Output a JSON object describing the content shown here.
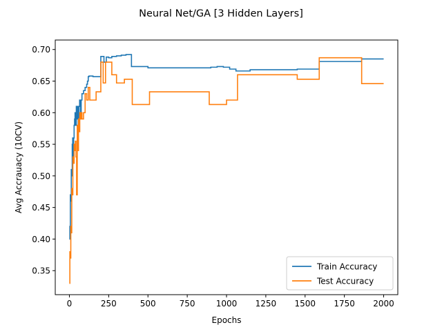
{
  "chart_data": {
    "type": "line",
    "title": "Neural Net/GA [3 Hidden Layers]",
    "xlabel": "Epochs",
    "ylabel": "Avg Accrauacy (10CV)",
    "xlim": [
      -90,
      2090
    ],
    "ylim": [
      0.312,
      0.715
    ],
    "xticks": [
      0,
      250,
      500,
      750,
      1000,
      1250,
      1500,
      1750,
      2000
    ],
    "xtick_labels": [
      "0",
      "250",
      "500",
      "750",
      "1000",
      "1250",
      "1500",
      "1750",
      "2000"
    ],
    "yticks": [
      0.35,
      0.4,
      0.45,
      0.5,
      0.55,
      0.6,
      0.65,
      0.7
    ],
    "ytick_labels": [
      "0.35",
      "0.40",
      "0.45",
      "0.50",
      "0.55",
      "0.60",
      "0.65",
      "0.70"
    ],
    "grid": false,
    "legend": {
      "position": "lower-right",
      "entries": [
        "Train Accuracy",
        "Test Accuracy"
      ]
    },
    "series": [
      {
        "name": "Train Accuracy",
        "color": "#1f77b4",
        "step": true,
        "x": [
          0,
          3,
          6,
          9,
          12,
          15,
          18,
          21,
          24,
          27,
          30,
          33,
          36,
          40,
          44,
          48,
          52,
          56,
          60,
          65,
          70,
          75,
          80,
          90,
          100,
          110,
          115,
          120,
          125,
          150,
          180,
          200,
          220,
          235,
          250,
          270,
          300,
          330,
          360,
          395,
          500,
          880,
          900,
          940,
          980,
          1020,
          1060,
          1150,
          1450,
          1590,
          1860,
          2000
        ],
        "y": [
          0.4,
          0.42,
          0.47,
          0.46,
          0.51,
          0.5,
          0.55,
          0.56,
          0.52,
          0.56,
          0.58,
          0.59,
          0.6,
          0.58,
          0.61,
          0.59,
          0.61,
          0.58,
          0.61,
          0.62,
          0.6,
          0.62,
          0.63,
          0.635,
          0.64,
          0.645,
          0.65,
          0.657,
          0.658,
          0.657,
          0.657,
          0.689,
          0.68,
          0.688,
          0.687,
          0.689,
          0.69,
          0.691,
          0.692,
          0.673,
          0.671,
          0.671,
          0.672,
          0.673,
          0.672,
          0.669,
          0.666,
          0.668,
          0.669,
          0.681,
          0.685,
          0.685
        ]
      },
      {
        "name": "Test Accuracy",
        "color": "#ff7f0e",
        "step": true,
        "x": [
          0,
          3,
          6,
          9,
          12,
          15,
          18,
          22,
          26,
          30,
          34,
          38,
          42,
          46,
          50,
          54,
          58,
          62,
          66,
          70,
          75,
          80,
          90,
          100,
          110,
          120,
          130,
          170,
          200,
          215,
          230,
          250,
          270,
          300,
          350,
          400,
          510,
          890,
          1000,
          1070,
          1450,
          1590,
          1860,
          2000
        ],
        "y": [
          0.33,
          0.38,
          0.37,
          0.42,
          0.41,
          0.48,
          0.47,
          0.53,
          0.52,
          0.55,
          0.54,
          0.555,
          0.53,
          0.47,
          0.58,
          0.54,
          0.59,
          0.57,
          0.6,
          0.59,
          0.6,
          0.59,
          0.6,
          0.63,
          0.62,
          0.64,
          0.62,
          0.633,
          0.68,
          0.647,
          0.68,
          0.68,
          0.66,
          0.647,
          0.653,
          0.613,
          0.633,
          0.613,
          0.62,
          0.66,
          0.653,
          0.687,
          0.646,
          0.646
        ]
      }
    ]
  }
}
